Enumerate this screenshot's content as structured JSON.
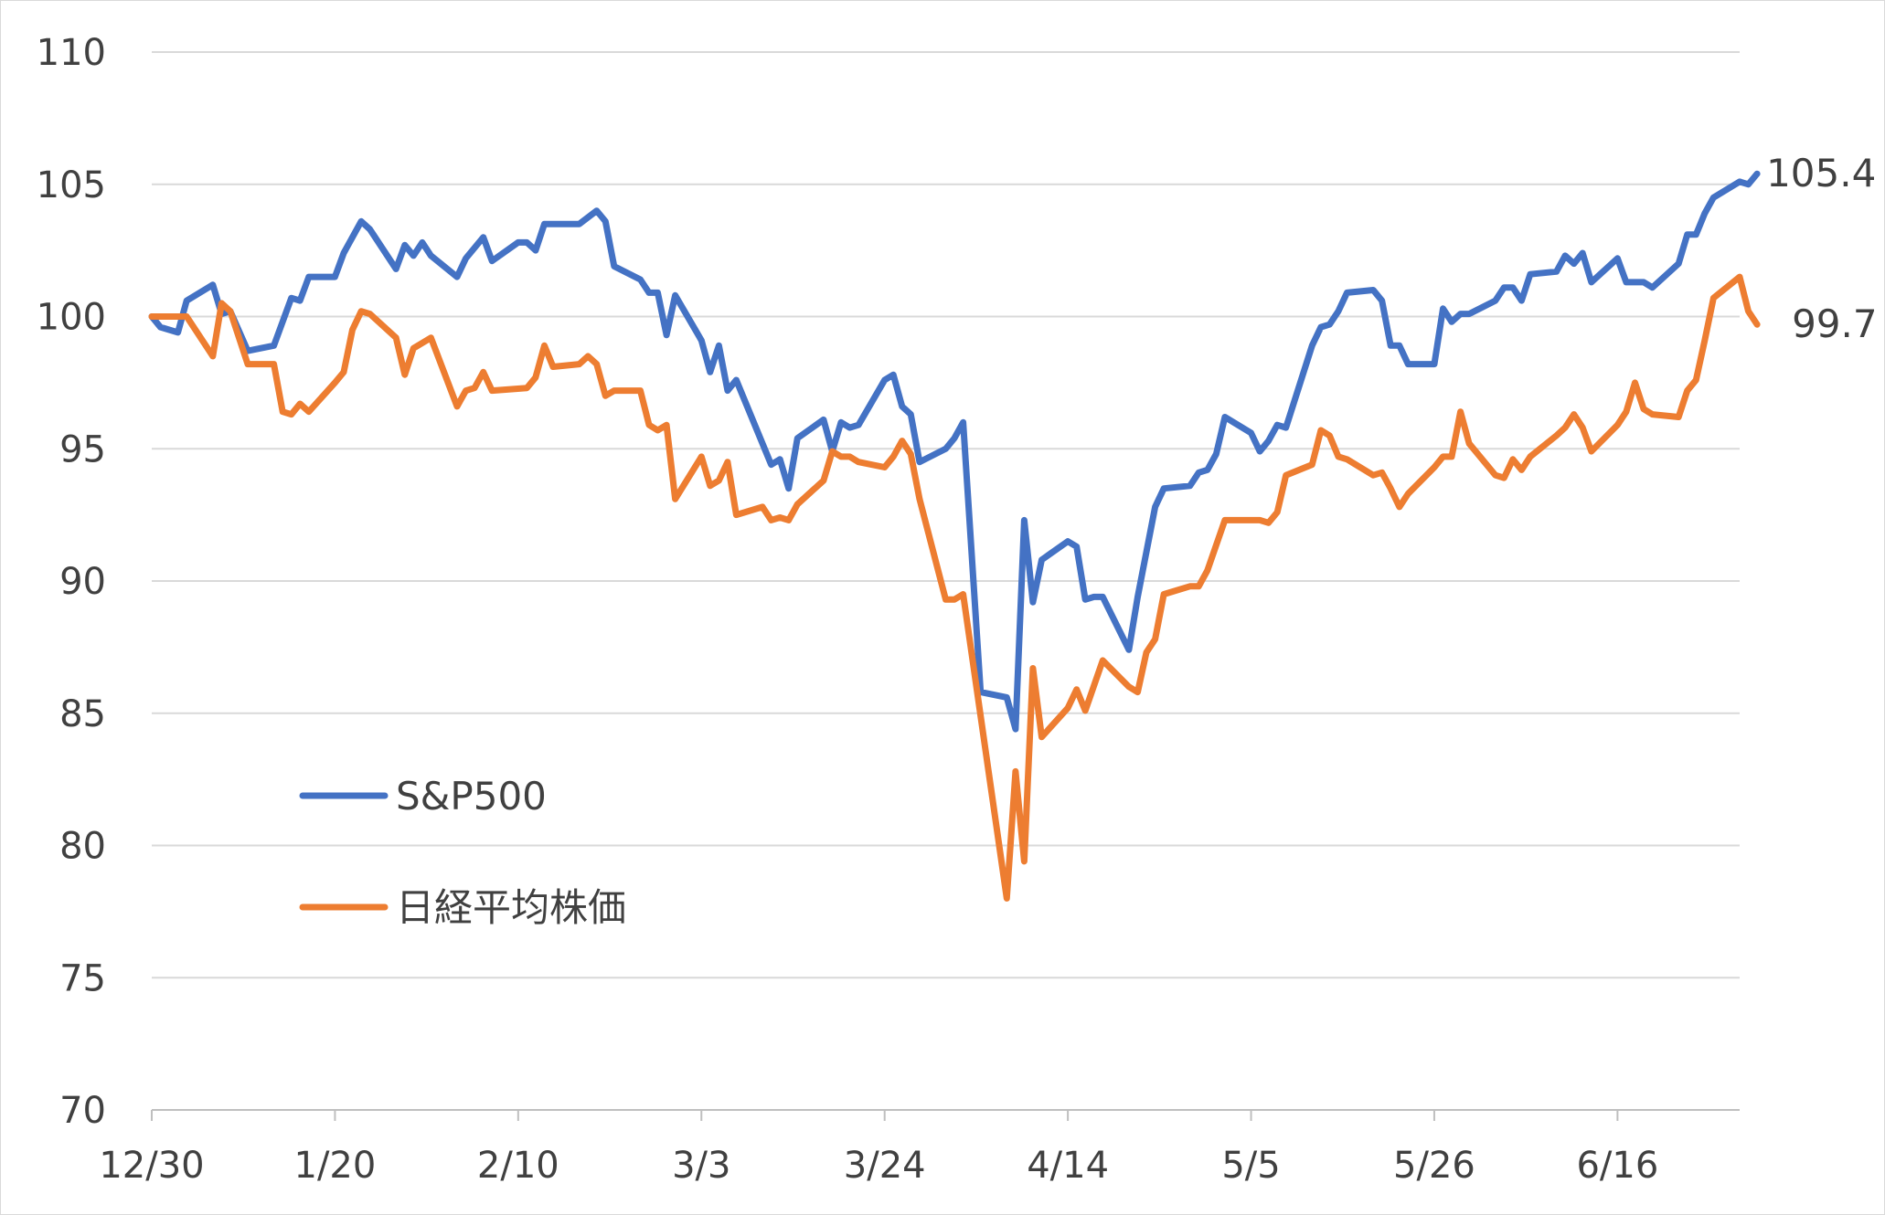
{
  "chart_data": {
    "type": "line",
    "title": "",
    "xlabel": "",
    "ylabel": "",
    "ylim": [
      70,
      110
    ],
    "yticks": [
      70,
      75,
      80,
      85,
      90,
      95,
      100,
      105,
      110
    ],
    "xlim": [
      0,
      182
    ],
    "x_ticks": [
      {
        "label": "12/30",
        "x": 0
      },
      {
        "label": "1/20",
        "x": 21
      },
      {
        "label": "2/10",
        "x": 42
      },
      {
        "label": "3/3",
        "x": 63
      },
      {
        "label": "3/24",
        "x": 84
      },
      {
        "label": "4/14",
        "x": 105
      },
      {
        "label": "5/5",
        "x": 126
      },
      {
        "label": "5/26",
        "x": 147
      },
      {
        "label": "6/16",
        "x": 168
      }
    ],
    "grid": true,
    "legend_position": "bottom-left",
    "series": [
      {
        "name": "S&P500",
        "color": "#4472C4",
        "end_label": "105.4",
        "points": [
          [
            0,
            100
          ],
          [
            1,
            99.6
          ],
          [
            3,
            99.4
          ],
          [
            4,
            100.6
          ],
          [
            7,
            101.2
          ],
          [
            8,
            100.1
          ],
          [
            9,
            100.2
          ],
          [
            11,
            98.7
          ],
          [
            14,
            98.9
          ],
          [
            16,
            100.7
          ],
          [
            17,
            100.6
          ],
          [
            18,
            101.5
          ],
          [
            21,
            101.5
          ],
          [
            22,
            102.4
          ],
          [
            24,
            103.6
          ],
          [
            25,
            103.3
          ],
          [
            28,
            101.8
          ],
          [
            29,
            102.7
          ],
          [
            30,
            102.3
          ],
          [
            31,
            102.8
          ],
          [
            32,
            102.3
          ],
          [
            35,
            101.5
          ],
          [
            36,
            102.2
          ],
          [
            38,
            103.0
          ],
          [
            39,
            102.1
          ],
          [
            42,
            102.8
          ],
          [
            43,
            102.8
          ],
          [
            44,
            102.5
          ],
          [
            45,
            103.5
          ],
          [
            49,
            103.5
          ],
          [
            51,
            104.0
          ],
          [
            52,
            103.6
          ],
          [
            53,
            101.9
          ],
          [
            56,
            101.4
          ],
          [
            57,
            100.9
          ],
          [
            58,
            100.9
          ],
          [
            59,
            99.3
          ],
          [
            60,
            100.8
          ],
          [
            63,
            99.1
          ],
          [
            64,
            97.9
          ],
          [
            65,
            98.9
          ],
          [
            66,
            97.2
          ],
          [
            67,
            97.6
          ],
          [
            71,
            94.4
          ],
          [
            72,
            94.6
          ],
          [
            73,
            93.5
          ],
          [
            74,
            95.4
          ],
          [
            77,
            96.1
          ],
          [
            78,
            94.9
          ],
          [
            79,
            96.0
          ],
          [
            80,
            95.8
          ],
          [
            81,
            95.9
          ],
          [
            84,
            97.6
          ],
          [
            85,
            97.8
          ],
          [
            86,
            96.6
          ],
          [
            87,
            96.3
          ],
          [
            88,
            94.5
          ],
          [
            91,
            95.0
          ],
          [
            92,
            95.4
          ],
          [
            93,
            96.0
          ],
          [
            95,
            85.8
          ],
          [
            98,
            85.6
          ],
          [
            99,
            84.4
          ],
          [
            100,
            92.3
          ],
          [
            101,
            89.2
          ],
          [
            102,
            90.8
          ],
          [
            105,
            91.5
          ],
          [
            106,
            91.3
          ],
          [
            107,
            89.3
          ],
          [
            108,
            89.4
          ],
          [
            109,
            89.4
          ],
          [
            112,
            87.4
          ],
          [
            113,
            89.4
          ],
          [
            115,
            92.8
          ],
          [
            116,
            93.5
          ],
          [
            119,
            93.6
          ],
          [
            120,
            94.1
          ],
          [
            121,
            94.2
          ],
          [
            122,
            94.8
          ],
          [
            123,
            96.2
          ],
          [
            126,
            95.6
          ],
          [
            127,
            94.9
          ],
          [
            128,
            95.3
          ],
          [
            129,
            95.9
          ],
          [
            130,
            95.8
          ],
          [
            133,
            98.9
          ],
          [
            134,
            99.6
          ],
          [
            135,
            99.7
          ],
          [
            136,
            100.2
          ],
          [
            137,
            100.9
          ],
          [
            140,
            101.0
          ],
          [
            141,
            100.6
          ],
          [
            142,
            98.9
          ],
          [
            143,
            98.9
          ],
          [
            144,
            98.2
          ],
          [
            147,
            98.2
          ],
          [
            148,
            100.3
          ],
          [
            149,
            99.8
          ],
          [
            150,
            100.1
          ],
          [
            151,
            100.1
          ],
          [
            154,
            100.6
          ],
          [
            155,
            101.1
          ],
          [
            156,
            101.1
          ],
          [
            157,
            100.6
          ],
          [
            158,
            101.6
          ],
          [
            161,
            101.7
          ],
          [
            162,
            102.3
          ],
          [
            163,
            102.0
          ],
          [
            164,
            102.4
          ],
          [
            165,
            101.3
          ],
          [
            168,
            102.2
          ],
          [
            169,
            101.3
          ],
          [
            171,
            101.3
          ],
          [
            172,
            101.1
          ],
          [
            175,
            102.0
          ],
          [
            176,
            103.1
          ],
          [
            177,
            103.1
          ],
          [
            178,
            103.9
          ],
          [
            179,
            104.5
          ],
          [
            182,
            105.1
          ],
          [
            183,
            105.0
          ],
          [
            184,
            105.4
          ]
        ]
      },
      {
        "name": "日経平均株価",
        "color": "#ED7D31",
        "end_label": "99.7",
        "points": [
          [
            0,
            100
          ],
          [
            4,
            100
          ],
          [
            7,
            98.5
          ],
          [
            8,
            100.5
          ],
          [
            9,
            100.2
          ],
          [
            11,
            98.2
          ],
          [
            14,
            98.2
          ],
          [
            15,
            96.4
          ],
          [
            16,
            96.3
          ],
          [
            17,
            96.7
          ],
          [
            18,
            96.4
          ],
          [
            21,
            97.5
          ],
          [
            22,
            97.9
          ],
          [
            23,
            99.5
          ],
          [
            24,
            100.2
          ],
          [
            25,
            100.1
          ],
          [
            28,
            99.2
          ],
          [
            29,
            97.8
          ],
          [
            30,
            98.8
          ],
          [
            32,
            99.2
          ],
          [
            35,
            96.6
          ],
          [
            36,
            97.2
          ],
          [
            37,
            97.3
          ],
          [
            38,
            97.9
          ],
          [
            39,
            97.2
          ],
          [
            43,
            97.3
          ],
          [
            44,
            97.7
          ],
          [
            45,
            98.9
          ],
          [
            46,
            98.1
          ],
          [
            49,
            98.2
          ],
          [
            50,
            98.5
          ],
          [
            51,
            98.2
          ],
          [
            52,
            97.0
          ],
          [
            53,
            97.2
          ],
          [
            56,
            97.2
          ],
          [
            57,
            95.9
          ],
          [
            58,
            95.7
          ],
          [
            59,
            95.9
          ],
          [
            60,
            93.1
          ],
          [
            63,
            94.7
          ],
          [
            64,
            93.6
          ],
          [
            65,
            93.8
          ],
          [
            66,
            94.5
          ],
          [
            67,
            92.5
          ],
          [
            70,
            92.8
          ],
          [
            71,
            92.3
          ],
          [
            72,
            92.4
          ],
          [
            73,
            92.3
          ],
          [
            74,
            92.9
          ],
          [
            77,
            93.8
          ],
          [
            78,
            94.9
          ],
          [
            79,
            94.7
          ],
          [
            80,
            94.7
          ],
          [
            81,
            94.5
          ],
          [
            84,
            94.3
          ],
          [
            85,
            94.7
          ],
          [
            86,
            95.3
          ],
          [
            87,
            94.8
          ],
          [
            88,
            93.1
          ],
          [
            91,
            89.3
          ],
          [
            92,
            89.3
          ],
          [
            93,
            89.5
          ],
          [
            98,
            78.0
          ],
          [
            99,
            82.8
          ],
          [
            100,
            79.4
          ],
          [
            101,
            86.7
          ],
          [
            102,
            84.1
          ],
          [
            105,
            85.2
          ],
          [
            106,
            85.9
          ],
          [
            107,
            85.1
          ],
          [
            109,
            87.0
          ],
          [
            112,
            86.0
          ],
          [
            113,
            85.8
          ],
          [
            114,
            87.3
          ],
          [
            115,
            87.8
          ],
          [
            116,
            89.5
          ],
          [
            119,
            89.8
          ],
          [
            120,
            89.8
          ],
          [
            121,
            90.4
          ],
          [
            123,
            92.3
          ],
          [
            126,
            92.3
          ],
          [
            127,
            92.3
          ],
          [
            128,
            92.2
          ],
          [
            129,
            92.6
          ],
          [
            130,
            94.0
          ],
          [
            133,
            94.4
          ],
          [
            134,
            95.7
          ],
          [
            135,
            95.5
          ],
          [
            136,
            94.7
          ],
          [
            137,
            94.6
          ],
          [
            140,
            94.0
          ],
          [
            141,
            94.1
          ],
          [
            142,
            93.5
          ],
          [
            143,
            92.8
          ],
          [
            144,
            93.3
          ],
          [
            147,
            94.3
          ],
          [
            148,
            94.7
          ],
          [
            149,
            94.7
          ],
          [
            150,
            96.4
          ],
          [
            151,
            95.2
          ],
          [
            154,
            94.0
          ],
          [
            155,
            93.9
          ],
          [
            156,
            94.6
          ],
          [
            157,
            94.2
          ],
          [
            158,
            94.7
          ],
          [
            161,
            95.5
          ],
          [
            162,
            95.8
          ],
          [
            163,
            96.3
          ],
          [
            164,
            95.8
          ],
          [
            165,
            94.9
          ],
          [
            168,
            95.9
          ],
          [
            169,
            96.4
          ],
          [
            170,
            97.5
          ],
          [
            171,
            96.5
          ],
          [
            172,
            96.3
          ],
          [
            175,
            96.2
          ],
          [
            176,
            97.2
          ],
          [
            177,
            97.6
          ],
          [
            178,
            99.1
          ],
          [
            179,
            100.7
          ],
          [
            182,
            101.5
          ],
          [
            183,
            100.2
          ],
          [
            184,
            99.7
          ]
        ]
      }
    ]
  }
}
